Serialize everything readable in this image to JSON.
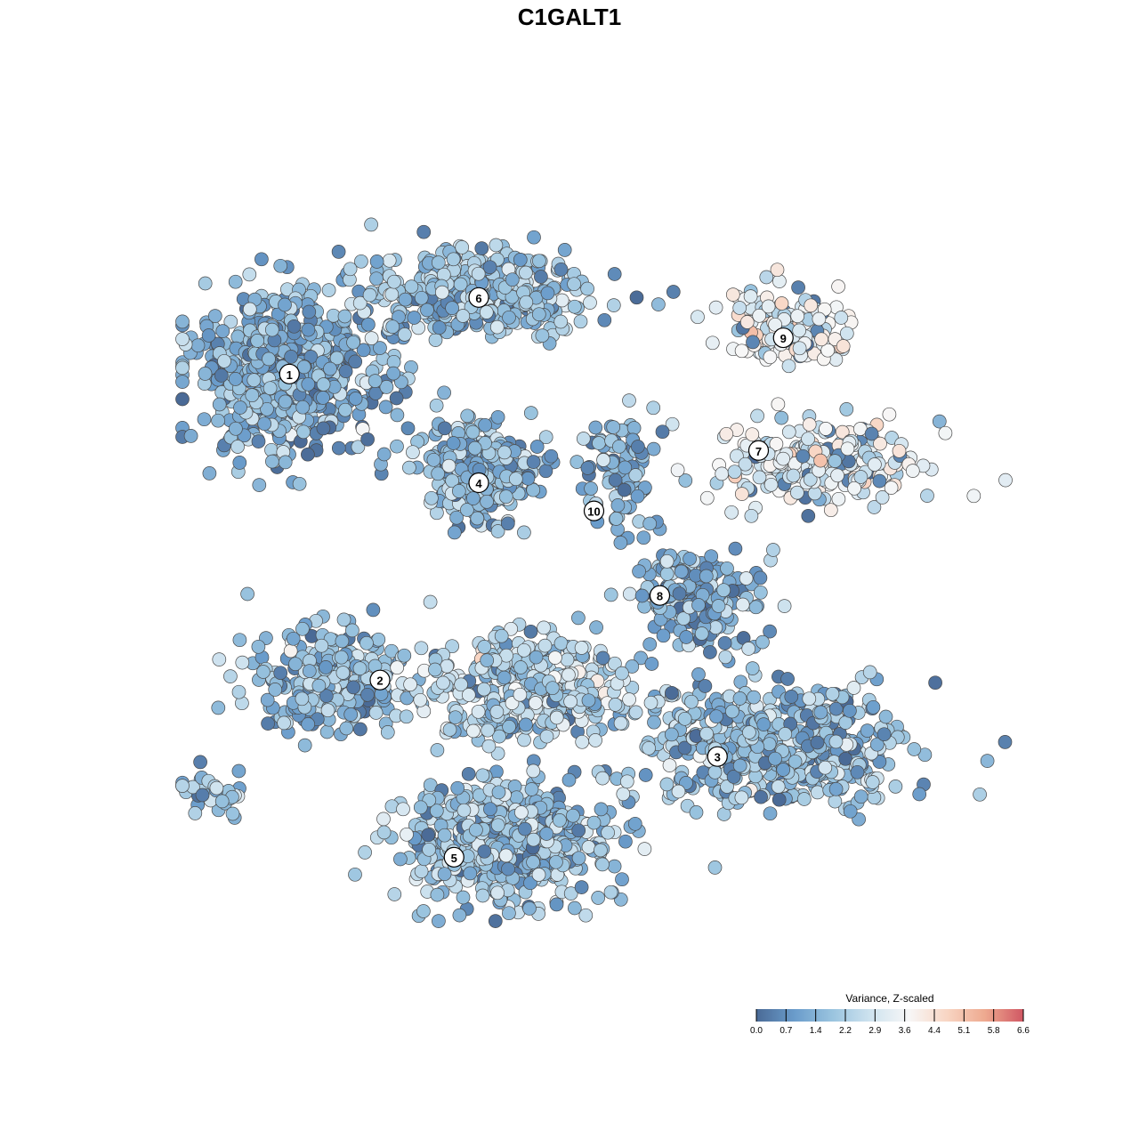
{
  "chart_data": {
    "type": "scatter",
    "title": "C1GALT1",
    "legend": {
      "title": "Variance, Z-scaled",
      "placement": "bottom-right",
      "min": 0.0,
      "max": 6.6,
      "ticks": [
        "0.0",
        "0.7",
        "1.4",
        "2.2",
        "2.9",
        "3.6",
        "4.4",
        "5.1",
        "5.8",
        "6.6"
      ],
      "colors": [
        "#4a6a96",
        "#6a9ccb",
        "#9ac4df",
        "#cfe3ef",
        "#f7f7f7",
        "#f8d5c3",
        "#eea98f",
        "#d05763"
      ]
    },
    "clusters": [
      {
        "label": "1",
        "x": 0.13,
        "y": 0.74,
        "sx": 0.1,
        "sy": 0.085,
        "n": 620,
        "mean": 1.5
      },
      {
        "label": "6",
        "x": 0.36,
        "y": 0.84,
        "sx": 0.11,
        "sy": 0.04,
        "n": 420,
        "mean": 2.0
      },
      {
        "label": "9",
        "x": 0.74,
        "y": 0.8,
        "sx": 0.07,
        "sy": 0.035,
        "n": 150,
        "mean": 3.4
      },
      {
        "label": "7",
        "x": 0.77,
        "y": 0.63,
        "sx": 0.1,
        "sy": 0.04,
        "n": 230,
        "mean": 3.3
      },
      {
        "label": "4",
        "x": 0.36,
        "y": 0.62,
        "sx": 0.055,
        "sy": 0.05,
        "n": 300,
        "mean": 1.6
      },
      {
        "label": "10",
        "x": 0.53,
        "y": 0.62,
        "sx": 0.035,
        "sy": 0.06,
        "n": 90,
        "mean": 1.6
      },
      {
        "label": "8",
        "x": 0.62,
        "y": 0.46,
        "sx": 0.065,
        "sy": 0.05,
        "n": 200,
        "mean": 1.5
      },
      {
        "label": "2",
        "x": 0.18,
        "y": 0.36,
        "sx": 0.085,
        "sy": 0.05,
        "n": 260,
        "mean": 1.6
      },
      {
        "label": "3",
        "x": 0.72,
        "y": 0.28,
        "sx": 0.13,
        "sy": 0.06,
        "n": 560,
        "mean": 1.9
      },
      {
        "label": "5",
        "x": 0.39,
        "y": 0.16,
        "sx": 0.1,
        "sy": 0.06,
        "n": 620,
        "mean": 2.0
      },
      {
        "label": "",
        "x": 0.42,
        "y": 0.35,
        "sx": 0.1,
        "sy": 0.05,
        "n": 430,
        "mean": 2.4
      },
      {
        "label": "",
        "x": 0.04,
        "y": 0.22,
        "sx": 0.03,
        "sy": 0.02,
        "n": 45,
        "mean": 2.0
      }
    ],
    "label_positions": [
      {
        "label": "1",
        "x": 0.13,
        "y": 0.74
      },
      {
        "label": "6",
        "x": 0.36,
        "y": 0.835
      },
      {
        "label": "9",
        "x": 0.73,
        "y": 0.785
      },
      {
        "label": "7",
        "x": 0.7,
        "y": 0.645
      },
      {
        "label": "4",
        "x": 0.36,
        "y": 0.605
      },
      {
        "label": "10",
        "x": 0.5,
        "y": 0.57
      },
      {
        "label": "8",
        "x": 0.58,
        "y": 0.465
      },
      {
        "label": "2",
        "x": 0.24,
        "y": 0.36
      },
      {
        "label": "3",
        "x": 0.65,
        "y": 0.265
      },
      {
        "label": "5",
        "x": 0.33,
        "y": 0.14
      }
    ]
  }
}
